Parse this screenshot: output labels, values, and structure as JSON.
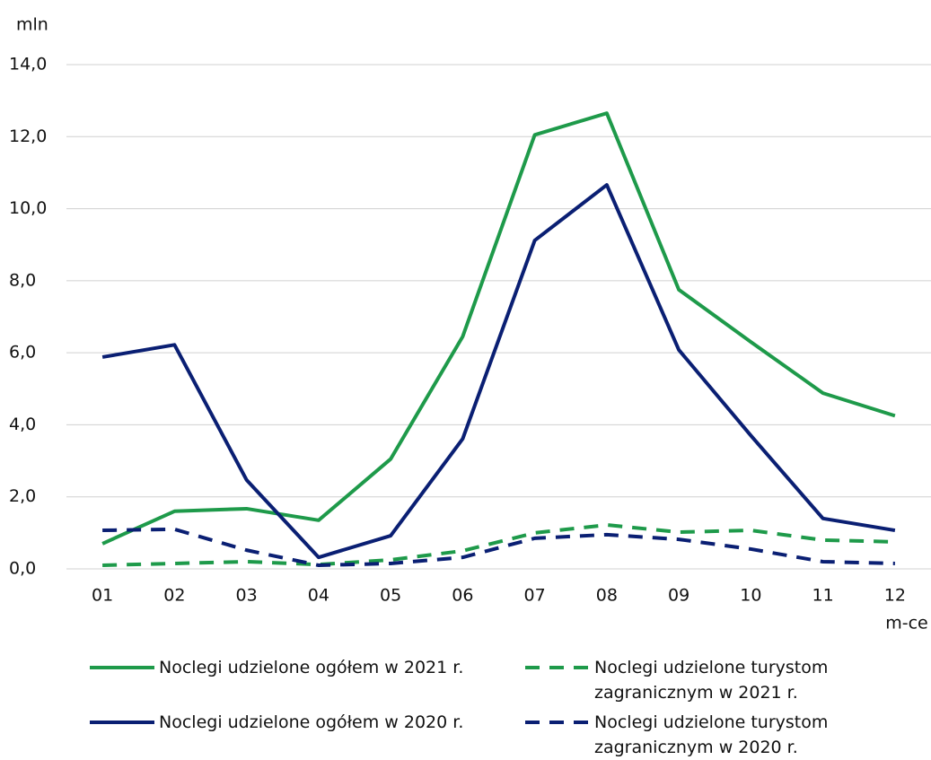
{
  "chart_data": {
    "type": "line",
    "y_unit_label": "mln",
    "x_unit_label": "m-ce",
    "categories": [
      "01",
      "02",
      "03",
      "04",
      "05",
      "06",
      "07",
      "08",
      "09",
      "10",
      "11",
      "12"
    ],
    "series": [
      {
        "name": "Noclegi udzielone ogółem w 2021 r.",
        "color": "#1e9a4a",
        "style": "solid",
        "values": [
          0.7,
          1.6,
          1.67,
          1.35,
          3.05,
          6.45,
          12.05,
          12.65,
          7.75,
          6.3,
          4.88,
          4.25
        ]
      },
      {
        "name": "Noclegi udzielone turystom zagranicznym w 2021 r.",
        "color": "#1e9a4a",
        "style": "dashed",
        "values": [
          0.1,
          0.15,
          0.2,
          0.12,
          0.25,
          0.5,
          1.0,
          1.22,
          1.02,
          1.07,
          0.8,
          0.75
        ]
      },
      {
        "name": "Noclegi udzielone ogółem w 2020 r.",
        "color": "#0a1f73",
        "style": "solid",
        "values": [
          5.88,
          6.22,
          2.47,
          0.32,
          0.92,
          3.61,
          9.12,
          10.66,
          6.08,
          3.7,
          1.4,
          1.07
        ]
      },
      {
        "name": "Noclegi udzielone turystom zagranicznym w 2020 r.",
        "color": "#0a1f73",
        "style": "dashed",
        "values": [
          1.07,
          1.1,
          0.52,
          0.1,
          0.15,
          0.32,
          0.85,
          0.95,
          0.82,
          0.55,
          0.2,
          0.15
        ]
      }
    ],
    "ylim": [
      0,
      14
    ],
    "yticks": [
      {
        "value": 0,
        "label": "0,0"
      },
      {
        "value": 2,
        "label": "2,0"
      },
      {
        "value": 4,
        "label": "4,0"
      },
      {
        "value": 6,
        "label": "6,0"
      },
      {
        "value": 8,
        "label": "8,0"
      },
      {
        "value": 10,
        "label": "10,0"
      },
      {
        "value": 12,
        "label": "12,0"
      },
      {
        "value": 14,
        "label": "14,0"
      }
    ],
    "grid": true
  }
}
